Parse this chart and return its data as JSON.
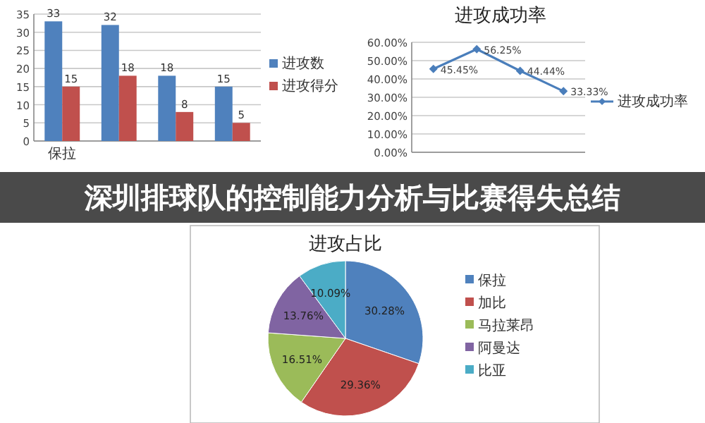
{
  "chart_data": [
    {
      "type": "bar",
      "categories": [
        "保拉",
        null,
        null,
        null
      ],
      "series": [
        {
          "name": "进攻数",
          "color": "#4f81bd",
          "values": [
            33,
            32,
            18,
            15
          ]
        },
        {
          "name": "进攻得分",
          "color": "#c0504d",
          "values": [
            15,
            18,
            8,
            5
          ]
        }
      ],
      "ylim": [
        0,
        35
      ],
      "yticks": [
        0,
        5,
        10,
        15,
        20,
        25,
        30,
        35
      ],
      "grid": "y",
      "legend": "right",
      "data_labels": true
    },
    {
      "type": "line",
      "title": "进攻成功率",
      "categories": [
        null,
        null,
        null,
        null
      ],
      "series": [
        {
          "name": "进攻成功率",
          "color": "#4a7ebb",
          "values": [
            45.45,
            56.25,
            44.44,
            33.33
          ],
          "value_labels": [
            "45.45%",
            "56.25%",
            "44.44%",
            "33.33%"
          ]
        }
      ],
      "ylim": [
        0,
        60
      ],
      "yticks": [
        {
          "value": 0,
          "label": "0.00%"
        },
        {
          "value": 10,
          "label": "10.00%"
        },
        {
          "value": 20,
          "label": "20.00%"
        },
        {
          "value": 30,
          "label": "30.00%"
        },
        {
          "value": 40,
          "label": "40.00%"
        },
        {
          "value": 50,
          "label": "50.00%"
        },
        {
          "value": 60,
          "label": "60.00%"
        }
      ],
      "grid": "y",
      "legend": "right",
      "marker": "diamond",
      "line_style": "solid"
    },
    {
      "type": "pie",
      "title": "进攻占比",
      "categories": [
        "保拉",
        "加比",
        "马拉莱昂",
        "阿曼达",
        "比亚"
      ],
      "values": [
        30.28,
        29.36,
        16.51,
        13.76,
        10.09
      ],
      "value_labels": [
        "30.28%",
        "29.36%",
        "16.51%",
        "13.76%",
        "10.09%"
      ],
      "colors": [
        "#4f81bd",
        "#c0504d",
        "#9bbb59",
        "#8064a2",
        "#4bacc6"
      ],
      "legend": "right"
    },
    {
      "type": "other",
      "title": "深圳排球队的控制能力分析与比赛得失总结"
    }
  ]
}
